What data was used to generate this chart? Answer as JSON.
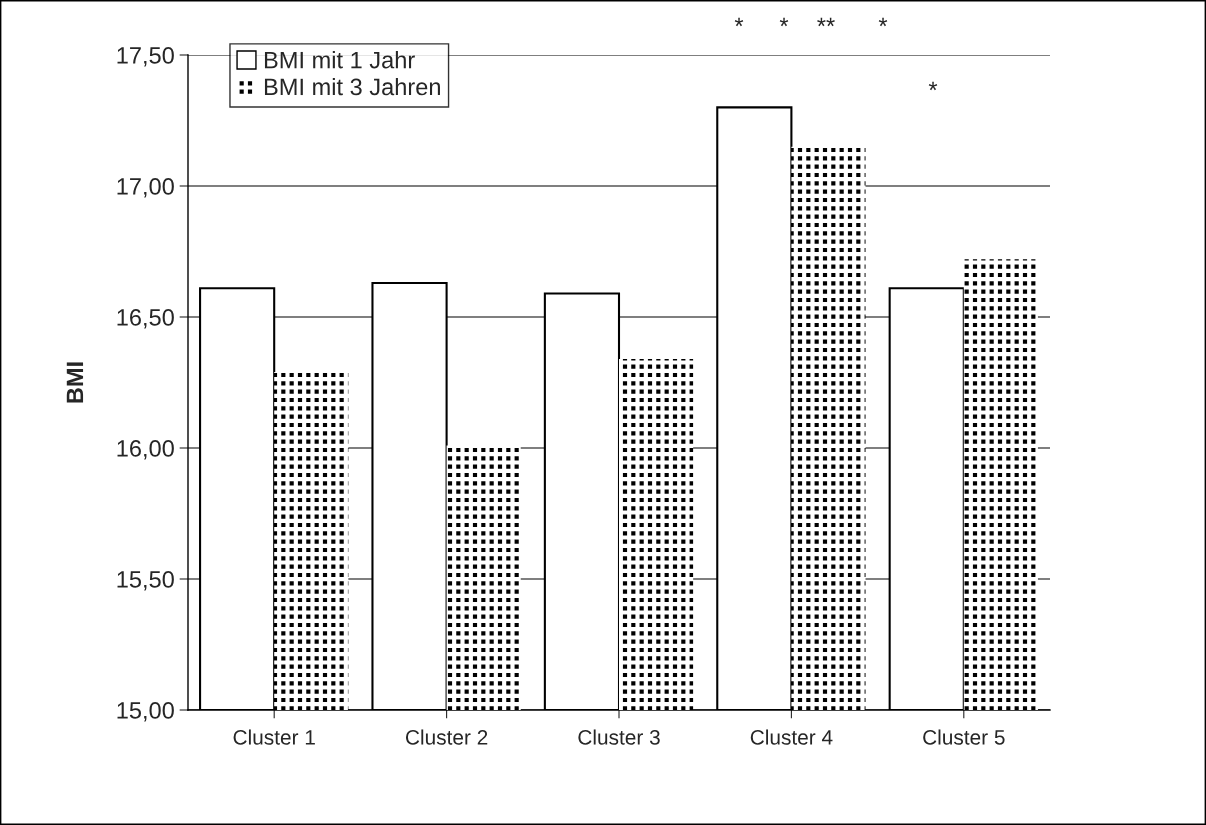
{
  "chart_data": {
    "type": "bar",
    "ylabel": "BMI",
    "categories": [
      "Cluster 1",
      "Cluster 2",
      "Cluster 3",
      "Cluster 4",
      "Cluster 5"
    ],
    "series": [
      {
        "name": "BMI mit 1 Jahr",
        "color": "#ffffff",
        "values": [
          16.61,
          16.63,
          16.59,
          17.3,
          16.61
        ]
      },
      {
        "name": "BMI mit 3 Jahren",
        "color": "#000000",
        "values": [
          16.29,
          16.01,
          16.34,
          17.15,
          16.72
        ]
      }
    ],
    "ylim": [
      15,
      17.5
    ],
    "yticks": [
      {
        "value": 15,
        "label": "15,00"
      },
      {
        "value": 15.5,
        "label": "15,50"
      },
      {
        "value": 16,
        "label": "16,00"
      },
      {
        "value": 16.5,
        "label": "16,50"
      },
      {
        "value": 17,
        "label": "17,00"
      },
      {
        "value": 17.5,
        "label": "17,50"
      }
    ],
    "grid": "y",
    "legend": "top left",
    "annotations": [
      "*",
      "*",
      "**",
      "*",
      "*"
    ]
  }
}
